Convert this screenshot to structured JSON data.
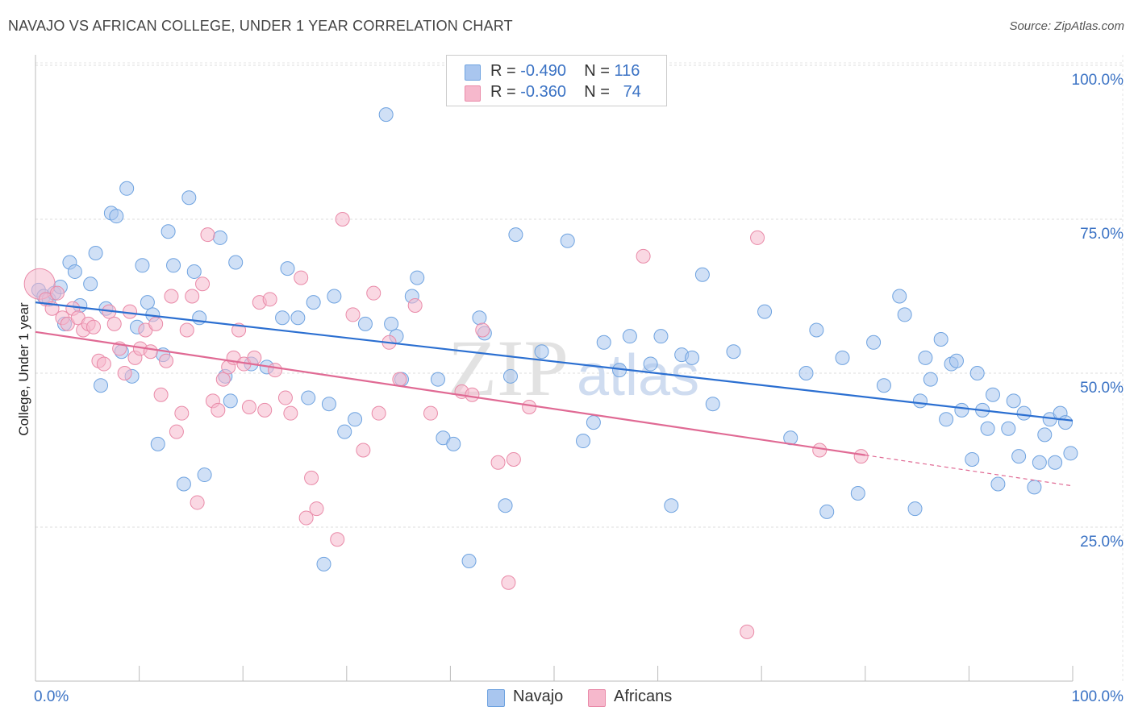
{
  "header": {
    "title": "NAVAJO VS AFRICAN COLLEGE, UNDER 1 YEAR CORRELATION CHART",
    "source": "Source: ZipAtlas.com"
  },
  "watermark": {
    "zip": "ZIP",
    "atlas": "atlas"
  },
  "legend_top": [
    {
      "r_label": "R =",
      "r_value": "-0.490",
      "n_label": "N =",
      "n_value": "116",
      "color": "#a9c6ef"
    },
    {
      "r_label": "R =",
      "r_value": "-0.360",
      "n_label": "N =",
      "n_value": "74",
      "color": "#f6b8cc"
    }
  ],
  "chart_data": {
    "type": "scatter",
    "ylabel": "College, Under 1 year",
    "x_tick_labels": [
      "0.0%",
      "100.0%"
    ],
    "y_tick_labels": [
      "25.0%",
      "50.0%",
      "75.0%",
      "100.0%"
    ],
    "xlim": [
      0,
      100
    ],
    "ylim": [
      0,
      102
    ],
    "grid": true,
    "legend_position": "top-center",
    "series": [
      {
        "name": "Navajo",
        "color": "#6fa3e0",
        "fill": "#a9c6ef",
        "trend": {
          "x0": 0,
          "y0": 61.5,
          "x1": 100,
          "y1": 42.3
        },
        "points": [
          [
            0.3,
            63.5
          ],
          [
            0.8,
            62.5
          ],
          [
            1.3,
            62.0
          ],
          [
            1.8,
            63.0
          ],
          [
            2.4,
            64.0
          ],
          [
            2.8,
            58.0
          ],
          [
            3.3,
            68.0
          ],
          [
            3.8,
            66.5
          ],
          [
            4.3,
            61.0
          ],
          [
            5.3,
            64.5
          ],
          [
            5.8,
            69.5
          ],
          [
            6.3,
            48.0
          ],
          [
            6.8,
            60.5
          ],
          [
            7.3,
            76.0
          ],
          [
            7.8,
            75.5
          ],
          [
            8.3,
            53.5
          ],
          [
            8.8,
            80.0
          ],
          [
            9.3,
            49.5
          ],
          [
            9.8,
            57.5
          ],
          [
            10.3,
            67.5
          ],
          [
            10.8,
            61.5
          ],
          [
            11.3,
            59.5
          ],
          [
            11.8,
            38.5
          ],
          [
            12.3,
            53.0
          ],
          [
            12.8,
            73.0
          ],
          [
            13.3,
            67.5
          ],
          [
            14.3,
            32.0
          ],
          [
            14.8,
            78.5
          ],
          [
            15.3,
            66.5
          ],
          [
            15.8,
            59.0
          ],
          [
            16.3,
            33.5
          ],
          [
            17.8,
            72.0
          ],
          [
            18.3,
            49.5
          ],
          [
            18.8,
            45.5
          ],
          [
            19.3,
            68.0
          ],
          [
            20.8,
            51.5
          ],
          [
            22.3,
            51.0
          ],
          [
            23.8,
            59.0
          ],
          [
            24.3,
            67.0
          ],
          [
            25.3,
            59.0
          ],
          [
            26.3,
            46.0
          ],
          [
            26.8,
            61.5
          ],
          [
            27.8,
            19.0
          ],
          [
            28.3,
            45.0
          ],
          [
            28.8,
            62.5
          ],
          [
            29.8,
            40.5
          ],
          [
            30.8,
            42.5
          ],
          [
            31.8,
            58.0
          ],
          [
            33.8,
            92.0
          ],
          [
            34.3,
            58.0
          ],
          [
            34.8,
            56.0
          ],
          [
            35.3,
            49.0
          ],
          [
            36.3,
            62.5
          ],
          [
            36.8,
            65.5
          ],
          [
            38.8,
            49.0
          ],
          [
            39.3,
            39.5
          ],
          [
            40.3,
            38.5
          ],
          [
            41.8,
            19.5
          ],
          [
            42.8,
            59.0
          ],
          [
            43.3,
            56.5
          ],
          [
            45.3,
            28.5
          ],
          [
            45.8,
            49.5
          ],
          [
            46.3,
            72.5
          ],
          [
            48.8,
            53.5
          ],
          [
            51.3,
            71.5
          ],
          [
            52.8,
            39.0
          ],
          [
            53.8,
            42.0
          ],
          [
            54.8,
            55.0
          ],
          [
            56.3,
            50.5
          ],
          [
            57.3,
            56.0
          ],
          [
            59.3,
            51.5
          ],
          [
            60.3,
            56.0
          ],
          [
            61.3,
            28.5
          ],
          [
            62.3,
            53.0
          ],
          [
            63.3,
            52.5
          ],
          [
            64.3,
            66.0
          ],
          [
            65.3,
            45.0
          ],
          [
            67.3,
            53.5
          ],
          [
            70.3,
            60.0
          ],
          [
            72.8,
            39.5
          ],
          [
            74.3,
            50.0
          ],
          [
            75.3,
            57.0
          ],
          [
            76.3,
            27.5
          ],
          [
            77.8,
            52.5
          ],
          [
            79.3,
            30.5
          ],
          [
            80.8,
            55.0
          ],
          [
            81.8,
            48.0
          ],
          [
            83.3,
            62.5
          ],
          [
            83.8,
            59.5
          ],
          [
            84.8,
            28.0
          ],
          [
            85.3,
            45.5
          ],
          [
            85.8,
            52.5
          ],
          [
            86.3,
            49.0
          ],
          [
            87.3,
            55.5
          ],
          [
            87.8,
            42.5
          ],
          [
            88.3,
            51.5
          ],
          [
            88.8,
            52.0
          ],
          [
            89.3,
            44.0
          ],
          [
            90.3,
            36.0
          ],
          [
            90.8,
            50.0
          ],
          [
            91.3,
            44.0
          ],
          [
            91.8,
            41.0
          ],
          [
            92.3,
            46.5
          ],
          [
            92.8,
            32.0
          ],
          [
            93.8,
            41.0
          ],
          [
            94.3,
            45.5
          ],
          [
            94.8,
            36.5
          ],
          [
            95.3,
            43.5
          ],
          [
            96.3,
            31.5
          ],
          [
            96.8,
            35.5
          ],
          [
            97.3,
            40.0
          ],
          [
            97.8,
            42.5
          ],
          [
            98.3,
            35.5
          ],
          [
            98.8,
            43.5
          ],
          [
            99.3,
            42.0
          ],
          [
            99.8,
            37.0
          ]
        ]
      },
      {
        "name": "Africans",
        "color": "#e98aa8",
        "fill": "#f6b8cc",
        "trend": {
          "x0": 0,
          "y0": 56.7,
          "x1": 80,
          "y1": 36.7
        },
        "trend_dashed": {
          "x0": 80,
          "y0": 36.7,
          "x1": 100,
          "y1": 31.7
        },
        "points": [
          [
            0.4,
            64.5
          ],
          [
            1.0,
            62.0
          ],
          [
            1.6,
            60.5
          ],
          [
            2.1,
            63.0
          ],
          [
            2.6,
            59.0
          ],
          [
            3.1,
            58.0
          ],
          [
            3.6,
            60.5
          ],
          [
            4.1,
            59.0
          ],
          [
            4.6,
            57.0
          ],
          [
            5.1,
            58.0
          ],
          [
            5.6,
            57.5
          ],
          [
            6.1,
            52.0
          ],
          [
            6.6,
            51.5
          ],
          [
            7.1,
            60.0
          ],
          [
            7.6,
            58.0
          ],
          [
            8.1,
            54.0
          ],
          [
            8.6,
            50.0
          ],
          [
            9.1,
            60.0
          ],
          [
            9.6,
            52.5
          ],
          [
            10.1,
            54.0
          ],
          [
            10.6,
            57.0
          ],
          [
            11.1,
            53.5
          ],
          [
            11.6,
            58.0
          ],
          [
            12.1,
            46.5
          ],
          [
            12.6,
            52.0
          ],
          [
            13.1,
            62.5
          ],
          [
            13.6,
            40.5
          ],
          [
            14.1,
            43.5
          ],
          [
            14.6,
            57.0
          ],
          [
            15.1,
            62.5
          ],
          [
            15.6,
            29.0
          ],
          [
            16.1,
            64.5
          ],
          [
            16.6,
            72.5
          ],
          [
            17.1,
            45.5
          ],
          [
            17.6,
            44.0
          ],
          [
            18.1,
            49.0
          ],
          [
            18.6,
            51.0
          ],
          [
            19.1,
            52.5
          ],
          [
            19.6,
            57.0
          ],
          [
            20.1,
            51.5
          ],
          [
            20.6,
            44.5
          ],
          [
            21.1,
            52.5
          ],
          [
            21.6,
            61.5
          ],
          [
            22.1,
            44.0
          ],
          [
            22.6,
            62.0
          ],
          [
            23.1,
            50.5
          ],
          [
            24.1,
            46.0
          ],
          [
            24.6,
            43.5
          ],
          [
            25.6,
            65.5
          ],
          [
            26.1,
            26.5
          ],
          [
            26.6,
            33.0
          ],
          [
            27.1,
            28.0
          ],
          [
            29.1,
            23.0
          ],
          [
            29.6,
            75.0
          ],
          [
            30.6,
            59.5
          ],
          [
            31.6,
            37.5
          ],
          [
            32.6,
            63.0
          ],
          [
            33.1,
            43.5
          ],
          [
            34.1,
            55.0
          ],
          [
            35.1,
            49.0
          ],
          [
            36.6,
            61.0
          ],
          [
            38.1,
            43.5
          ],
          [
            41.1,
            47.0
          ],
          [
            42.1,
            46.5
          ],
          [
            43.1,
            57.0
          ],
          [
            44.6,
            35.5
          ],
          [
            45.6,
            16.0
          ],
          [
            46.1,
            36.0
          ],
          [
            47.6,
            44.5
          ],
          [
            58.6,
            69.0
          ],
          [
            68.6,
            8.0
          ],
          [
            69.6,
            72.0
          ],
          [
            75.6,
            37.5
          ],
          [
            79.6,
            36.5
          ]
        ]
      }
    ]
  }
}
